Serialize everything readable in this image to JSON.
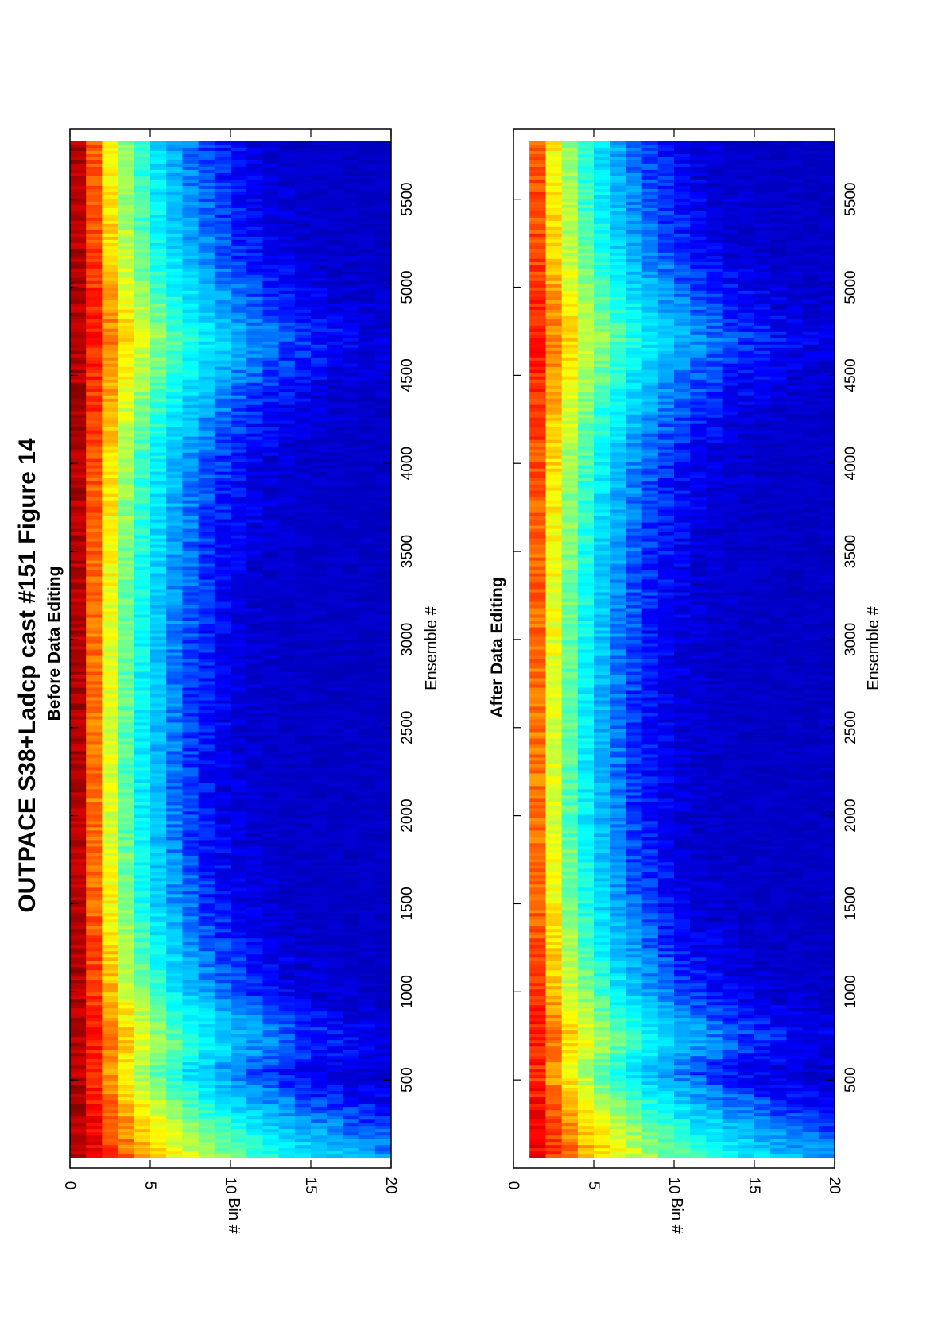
{
  "title": "OUTPACE S38+Ladcp cast #151  Figure 14",
  "colormap": [
    "#00008f",
    "#0000ff",
    "#00a0ff",
    "#00ffff",
    "#7fff7f",
    "#ffff00",
    "#ff8000",
    "#ff0000",
    "#800000"
  ],
  "chart_data": [
    {
      "type": "heatmap",
      "title": "Before Data Editing",
      "xlabel": "Ensemble #",
      "ylabel": "Bin #",
      "xlim": [
        0,
        5900
      ],
      "ylim": [
        0,
        20
      ],
      "xticks": [
        500,
        1000,
        1500,
        2000,
        2500,
        3000,
        3500,
        4000,
        4500,
        5000,
        5500
      ],
      "yticks": [
        0,
        5,
        10,
        15,
        20
      ],
      "bins": 20,
      "first_bin_blank": false,
      "intensity_profile": {
        "ensemble": [
          0,
          300,
          550,
          700,
          800,
          1000,
          1500,
          2000,
          2500,
          3000,
          3500,
          4000,
          4300,
          4700,
          4900,
          5200,
          5500,
          5900
        ],
        "bins_to_decay": [
          15,
          10,
          6.5,
          8.5,
          8,
          6,
          4.5,
          4,
          4,
          4.2,
          4.5,
          5,
          6,
          8,
          7,
          5.5,
          5,
          4.5
        ]
      }
    },
    {
      "type": "heatmap",
      "title": "After Data Editing",
      "xlabel": "Ensemble #",
      "ylabel": "Bin #",
      "xlim": [
        0,
        5900
      ],
      "ylim": [
        0,
        20
      ],
      "xticks": [
        500,
        1000,
        1500,
        2000,
        2500,
        3000,
        3500,
        4000,
        4500,
        5000,
        5500
      ],
      "yticks": [
        0,
        5,
        10,
        15,
        20
      ],
      "bins": 20,
      "first_bin_blank": true,
      "intensity_profile": {
        "ensemble": [
          0,
          300,
          550,
          700,
          800,
          1000,
          1500,
          2000,
          2500,
          3000,
          3500,
          4000,
          4300,
          4700,
          4900,
          5200,
          5500,
          5900
        ],
        "bins_to_decay": [
          15,
          10,
          6.5,
          8.5,
          8,
          6,
          4.5,
          4,
          4,
          4.2,
          4.5,
          5,
          6,
          8,
          7,
          5.5,
          5,
          4.5
        ]
      }
    }
  ]
}
